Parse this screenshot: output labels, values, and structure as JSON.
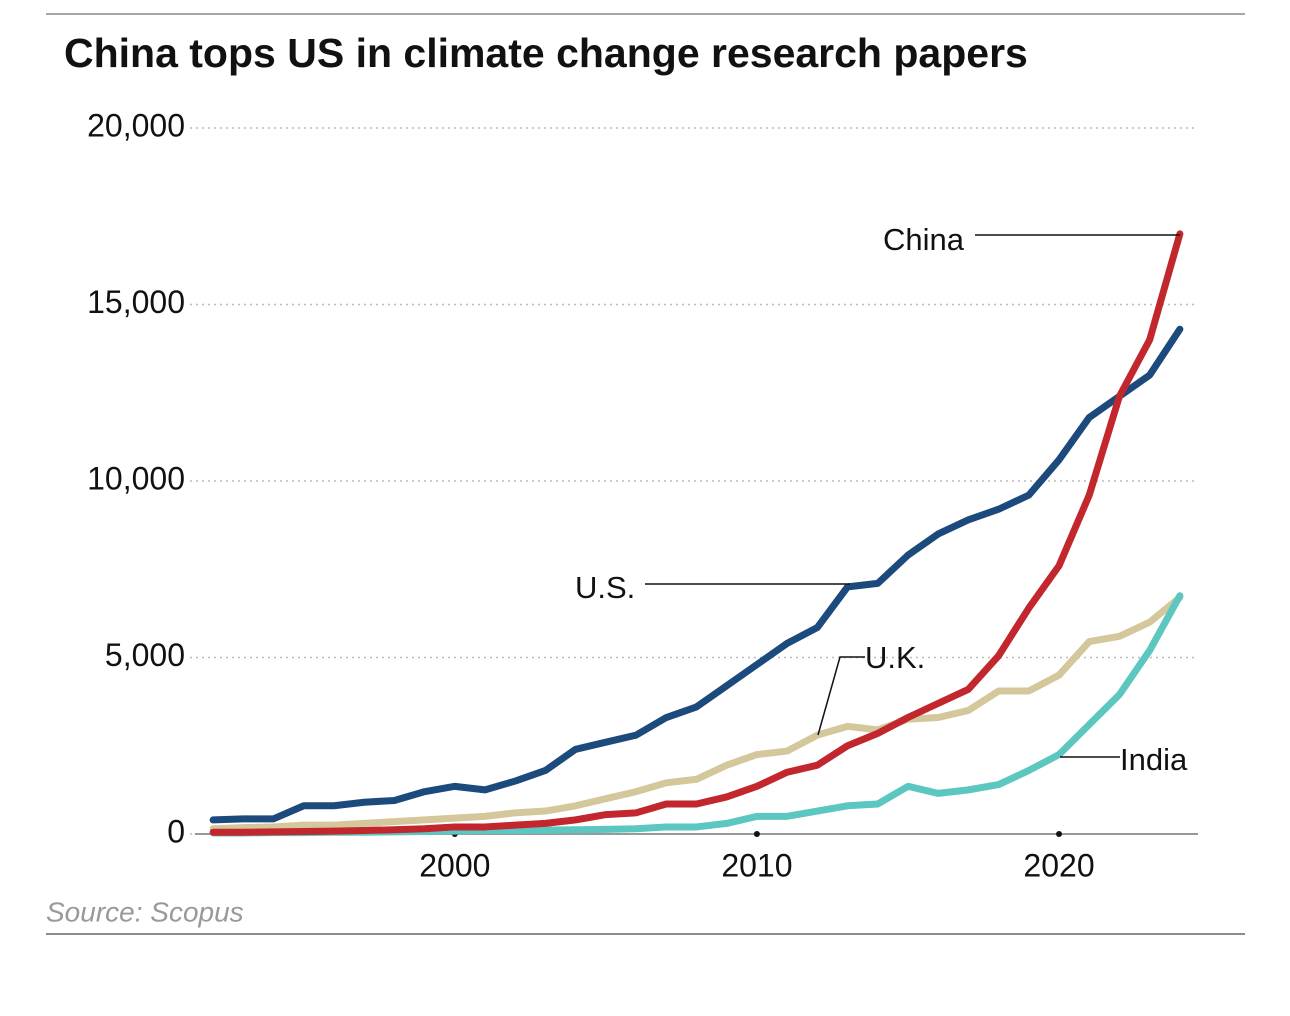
{
  "chart_data": {
    "type": "line",
    "title": "China tops US in climate change research papers",
    "source": "Source: Scopus",
    "x": [
      1992,
      1993,
      1994,
      1995,
      1996,
      1997,
      1998,
      1999,
      2000,
      2001,
      2002,
      2003,
      2004,
      2005,
      2006,
      2007,
      2008,
      2009,
      2010,
      2011,
      2012,
      2013,
      2014,
      2015,
      2016,
      2017,
      2018,
      2019,
      2020,
      2021,
      2022,
      2023,
      2024
    ],
    "xlim": [
      1991.4,
      2024.6
    ],
    "xticks": [
      2000,
      2010,
      2020
    ],
    "ylim": [
      0,
      20000
    ],
    "yticks": [
      0,
      {
        "value": 5000,
        "label": "5,000"
      },
      {
        "value": 10000,
        "label": "10,000"
      },
      {
        "value": 15000,
        "label": "15,000"
      },
      {
        "value": 20000,
        "label": "20,000"
      }
    ],
    "grid": true,
    "series": [
      {
        "name": "U.S.",
        "color": "#1c4a7c",
        "values": [
          400,
          430,
          430,
          800,
          800,
          900,
          950,
          1200,
          1350,
          1250,
          1500,
          1800,
          2400,
          2600,
          2800,
          3300,
          3600,
          4200,
          4800,
          5400,
          5850,
          7000,
          7100,
          7900,
          8500,
          8900,
          9200,
          9600,
          10600,
          11800,
          12400,
          13000,
          14300
        ]
      },
      {
        "name": "China",
        "color": "#c1272d",
        "values": [
          50,
          50,
          60,
          70,
          80,
          100,
          120,
          150,
          200,
          200,
          250,
          300,
          400,
          550,
          600,
          850,
          850,
          1050,
          1350,
          1750,
          1950,
          2500,
          2850,
          3300,
          3700,
          4100,
          5050,
          6400,
          7600,
          9600,
          12400,
          14000,
          17000
        ]
      },
      {
        "name": "U.K.",
        "color": "#d5c79c",
        "values": [
          150,
          180,
          200,
          250,
          250,
          300,
          350,
          400,
          450,
          500,
          600,
          650,
          800,
          1000,
          1200,
          1450,
          1550,
          1950,
          2250,
          2350,
          2800,
          3050,
          2950,
          3250,
          3300,
          3500,
          4050,
          4050,
          4500,
          5450,
          5600,
          6000,
          6700
        ]
      },
      {
        "name": "India",
        "color": "#5cc6c1",
        "values": [
          30,
          30,
          40,
          40,
          50,
          50,
          60,
          70,
          80,
          100,
          100,
          110,
          120,
          130,
          150,
          200,
          200,
          300,
          500,
          500,
          650,
          800,
          850,
          1350,
          1150,
          1250,
          1400,
          1800,
          2250,
          3100,
          3950,
          5200,
          6750
        ]
      }
    ]
  }
}
